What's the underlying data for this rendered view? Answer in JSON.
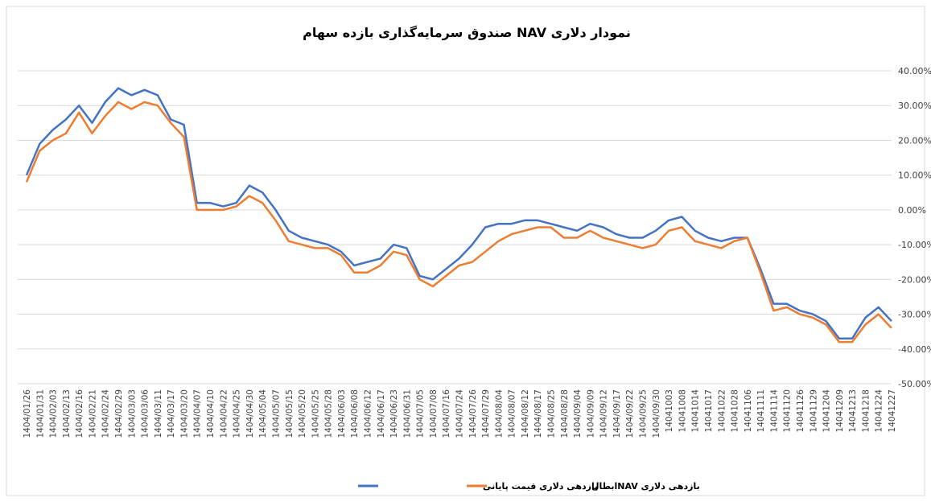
{
  "chart_data": {
    "type": "line",
    "title": "نمودار دلاری NAV صندوق سرمایه‌گذاری بازده سهام",
    "categories": [
      "1404/01/26",
      "1404/01/31",
      "1404/02/03",
      "1404/02/13",
      "1404/02/16",
      "1404/02/21",
      "1404/02/24",
      "1404/02/29",
      "1404/03/03",
      "1404/03/06",
      "1404/03/11",
      "1404/03/17",
      "1404/03/20",
      "1404/04/07",
      "1404/04/10",
      "1404/04/22",
      "1404/04/25",
      "1404/04/30",
      "1404/05/04",
      "1404/05/07",
      "1404/05/15",
      "1404/05/20",
      "1404/05/25",
      "1404/05/28",
      "1404/06/03",
      "1404/06/08",
      "1404/06/12",
      "1404/06/17",
      "1404/06/23",
      "1404/06/31",
      "1404/07/05",
      "1404/07/08",
      "1404/07/16",
      "1404/07/24",
      "1404/07/26",
      "1404/07/29",
      "1404/08/04",
      "1404/08/07",
      "1404/08/12",
      "1404/08/17",
      "1404/08/25",
      "1404/08/28",
      "1404/09/04",
      "1404/09/09",
      "1404/09/12",
      "1404/09/17",
      "1404/09/22",
      "1404/09/25",
      "1404/09/30",
      "14041003",
      "14041008",
      "14041014",
      "14041017",
      "14041022",
      "14041028",
      "14041106",
      "14041111",
      "14041114",
      "14041120",
      "14041126",
      "14041129",
      "14041204",
      "14041209",
      "14041213",
      "14041218",
      "14041224",
      "14041227"
    ],
    "series": [
      {
        "name": "بازدهی دلاری قیمت پایانی",
        "color": "#4472c4",
        "values": [
          10,
          19,
          23,
          26,
          30,
          25,
          31,
          35,
          33,
          34.5,
          33,
          26,
          24.5,
          2,
          2,
          1,
          2,
          7,
          5,
          0,
          -6,
          -8,
          -9,
          -10,
          -12,
          -16,
          -15,
          -14,
          -10,
          -11,
          -19,
          -20,
          -17,
          -14,
          -10,
          -5,
          -4,
          -4,
          -3,
          -3,
          -4,
          -5,
          -6,
          -4,
          -5,
          -7,
          -8,
          -8,
          -6,
          -3,
          -2,
          -6,
          -8,
          -9,
          -8,
          -8,
          -17,
          -27,
          -27,
          -29,
          -30,
          -32,
          -37,
          -37,
          -31,
          -28,
          -32
        ]
      },
      {
        "name": "بازدهی دلاری NAVابطال",
        "color": "#ed7d31",
        "values": [
          8,
          17,
          20,
          22,
          28,
          22,
          27,
          31,
          29,
          31,
          30,
          25,
          21,
          0,
          0,
          0,
          1,
          4,
          2,
          -3,
          -9,
          -10,
          -11,
          -11,
          -13,
          -18,
          -18,
          -16,
          -12,
          -13,
          -20,
          -22,
          -19,
          -16,
          -15,
          -12,
          -9,
          -7,
          -6,
          -5,
          -5,
          -8,
          -8,
          -6,
          -8,
          -9,
          -10,
          -11,
          -10,
          -6,
          -5,
          -9,
          -10,
          -11,
          -9,
          -8,
          -18,
          -29,
          -28,
          -30,
          -31,
          -33,
          -38,
          -38,
          -33,
          -30,
          -34
        ]
      }
    ],
    "ylim": [
      -50,
      40
    ],
    "yticks": [
      {
        "value": -50,
        "label": "-50.00%"
      },
      {
        "value": -40,
        "label": "-40.00%"
      },
      {
        "value": -30,
        "label": "-30.00%"
      },
      {
        "value": -20,
        "label": "-20.00%"
      },
      {
        "value": -10,
        "label": "-10.00%"
      },
      {
        "value": 0,
        "label": "0.00%"
      },
      {
        "value": 10,
        "label": "10.00%"
      },
      {
        "value": 20,
        "label": "20.00%"
      },
      {
        "value": 30,
        "label": "30.00%"
      },
      {
        "value": 40,
        "label": "40.00%"
      }
    ],
    "grid": true,
    "legend": "bottom"
  }
}
